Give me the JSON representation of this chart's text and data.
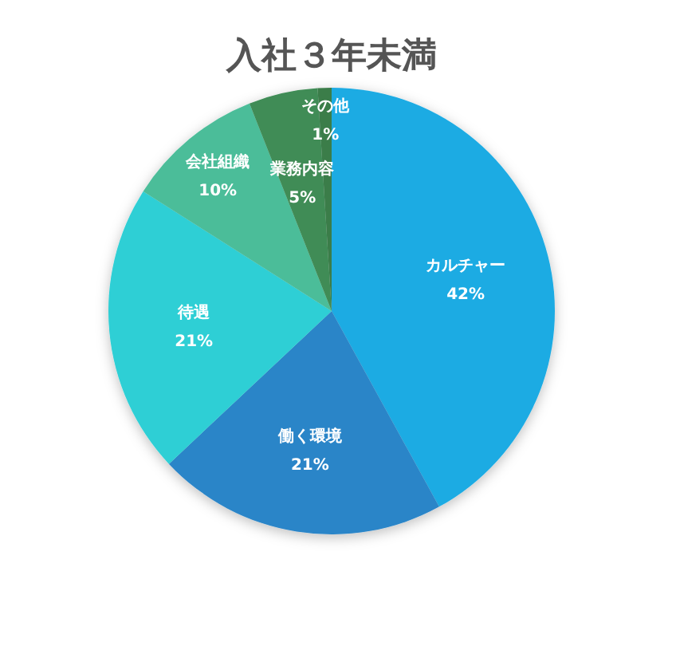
{
  "chart_data": {
    "type": "pie",
    "title": "入社３年未満",
    "categories": [
      "カルチャー",
      "働く環境",
      "待遇",
      "会社組織",
      "業務内容",
      "その他"
    ],
    "values": [
      42,
      21,
      21,
      10,
      5,
      1
    ],
    "colors": [
      "#1fabe3",
      "#2a85c8",
      "#2dcfd5",
      "#4bbd99",
      "#3f8c56",
      "#3a7d4a"
    ],
    "value_labels": [
      "42%",
      "21%",
      "21%",
      "10%",
      "5%",
      "1%"
    ]
  }
}
